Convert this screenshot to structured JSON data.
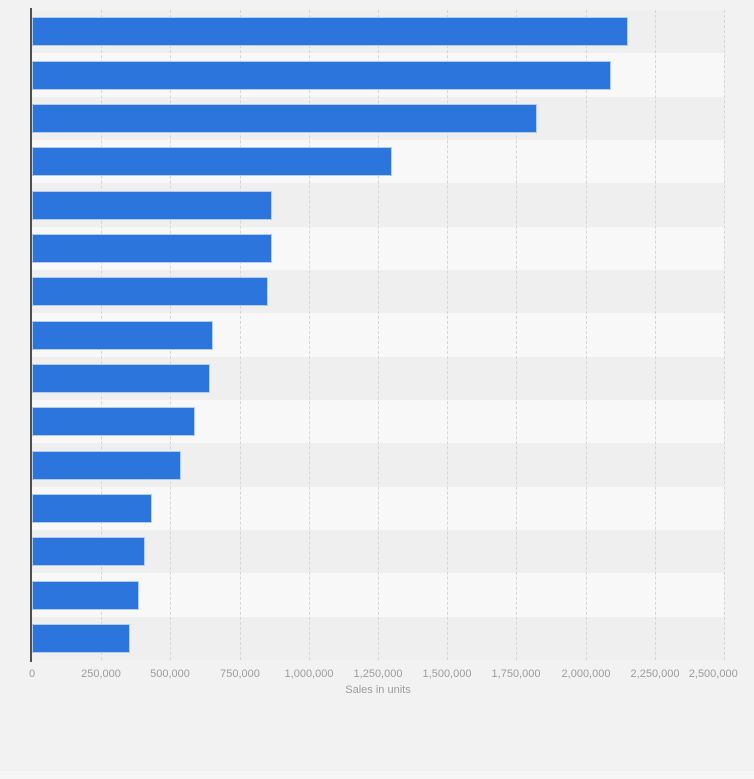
{
  "chart_data": {
    "type": "bar",
    "orientation": "horizontal",
    "title": "",
    "xlabel": "Sales in units",
    "xlim": [
      0,
      2500000
    ],
    "xticks": [
      0,
      250000,
      500000,
      750000,
      1000000,
      1250000,
      1500000,
      1750000,
      2000000,
      2250000,
      2500000
    ],
    "xtick_labels": [
      "0",
      "250,000",
      "500,000",
      "750,000",
      "1,000,000",
      "1,250,000",
      "1,500,000",
      "1,750,000",
      "2,000,000",
      "2,250,000",
      "2,500,000"
    ],
    "grid": true,
    "legend": false,
    "zebra_bands": true,
    "bar_count": 15,
    "values": [
      2146000,
      2083000,
      1816000,
      1292000,
      861000,
      861000,
      846000,
      647000,
      636000,
      582000,
      531000,
      426000,
      401000,
      379000,
      347000
    ]
  },
  "colors": {
    "bar_fill": "#2b75dc",
    "bar_border": "#b3cdf0",
    "band_dark": "#efefef",
    "band_light": "#f8f8f8",
    "page_background": "#f2f2f2",
    "axis_line": "#4f4f4f",
    "gridline": "#d5d5d5",
    "tick_text": "#9c9c9c"
  }
}
